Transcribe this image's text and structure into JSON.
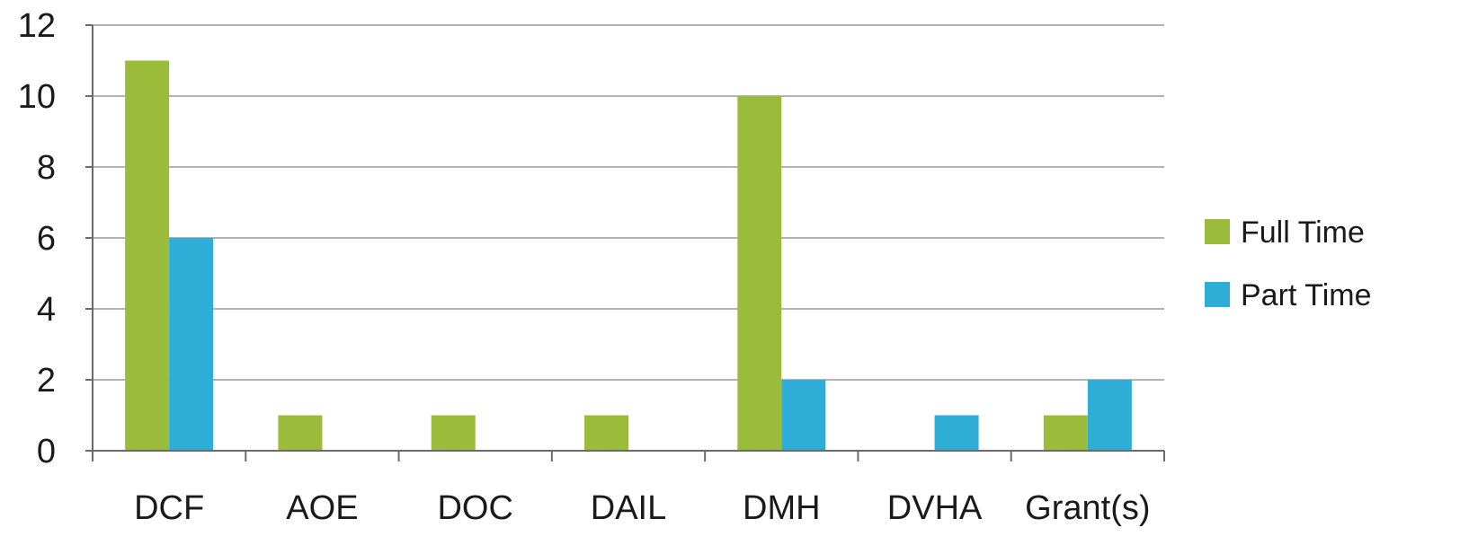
{
  "chart_data": {
    "type": "bar",
    "title": "",
    "xlabel": "",
    "ylabel": "",
    "categories": [
      "DCF",
      "AOE",
      "DOC",
      "DAIL",
      "DMH",
      "DVHA",
      "Grant(s)"
    ],
    "series": [
      {
        "name": "Full Time",
        "values": [
          11,
          1,
          1,
          1,
          10,
          0,
          1
        ],
        "color": "#9bbb3b"
      },
      {
        "name": "Part Time",
        "values": [
          6,
          0,
          0,
          0,
          2,
          1,
          2
        ],
        "color": "#2eaed6"
      }
    ],
    "ylim": [
      0,
      12
    ],
    "yticks": [
      0,
      2,
      4,
      6,
      8,
      10,
      12
    ],
    "grid": true,
    "legend_position": "right"
  }
}
